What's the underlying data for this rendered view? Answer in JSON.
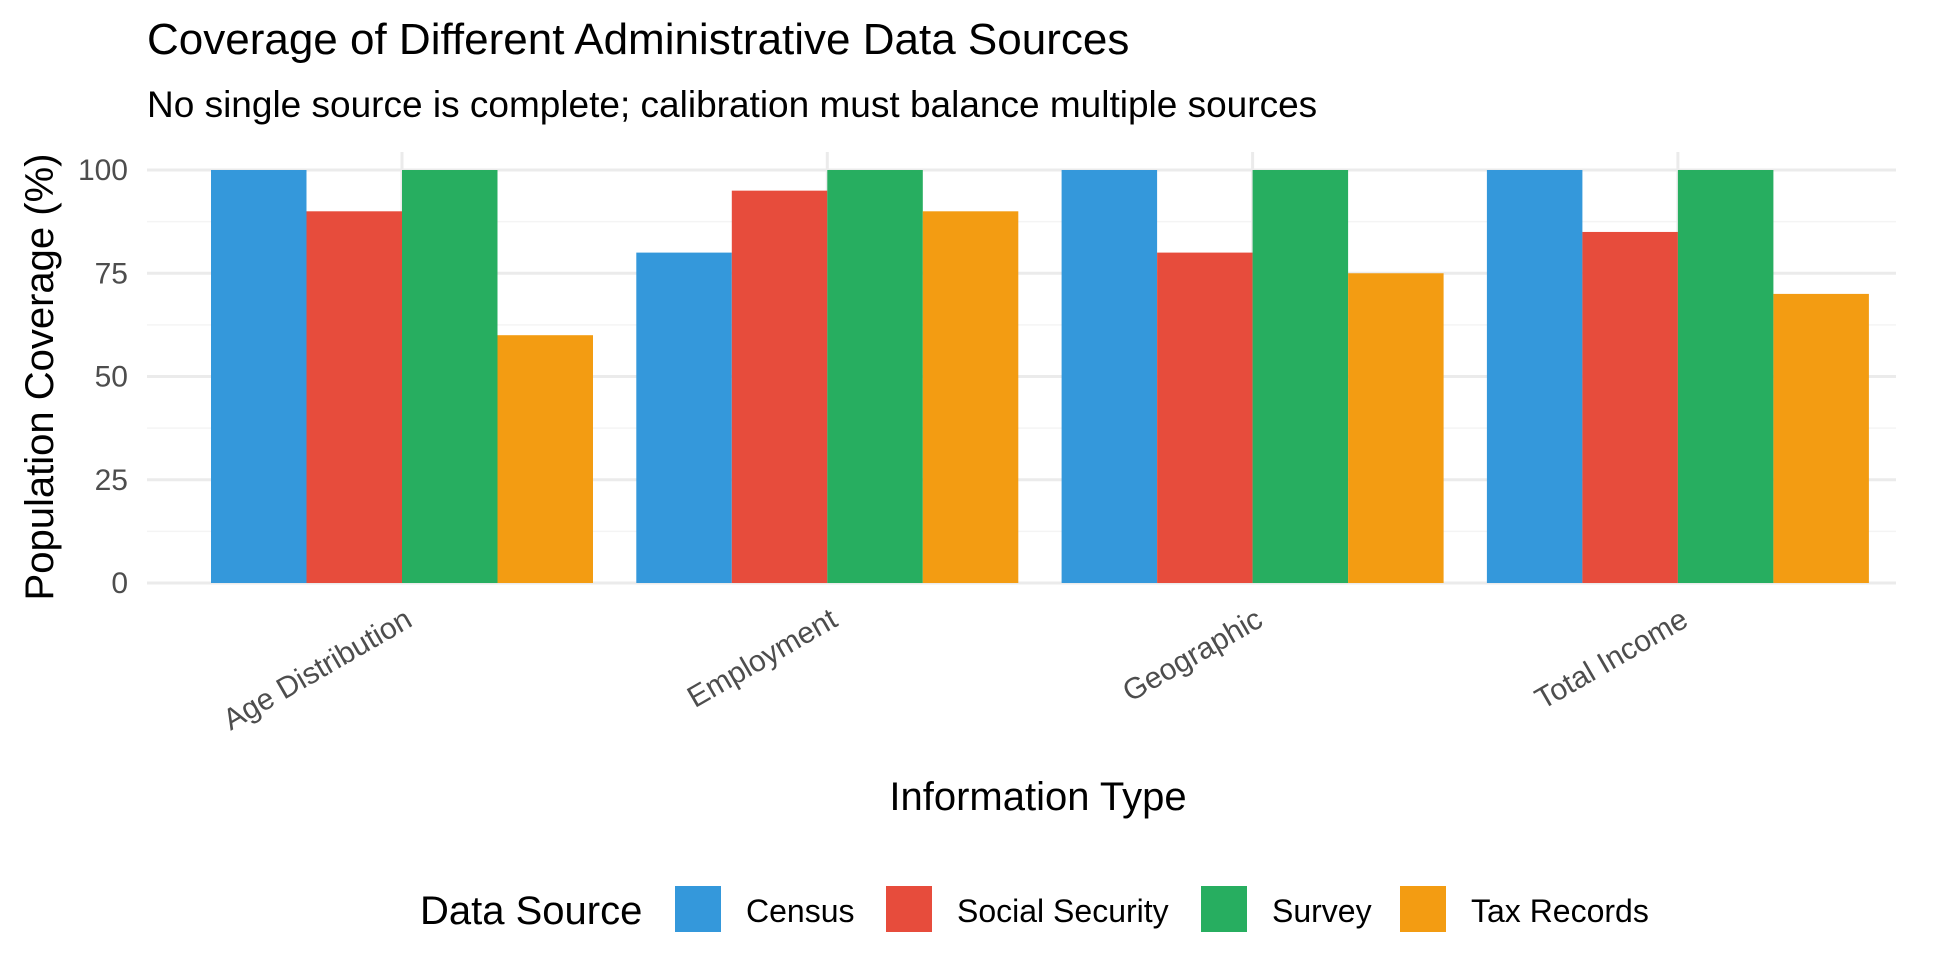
{
  "chart_data": {
    "type": "bar",
    "title": "Coverage of Different Administrative Data Sources",
    "subtitle": "No single source is complete; calibration must balance multiple sources",
    "xlabel": "Information Type",
    "ylabel": "Population Coverage (%)",
    "categories": [
      "Age Distribution",
      "Employment",
      "Geographic",
      "Total Income"
    ],
    "series": [
      {
        "name": "Census",
        "color": "#3498db",
        "values": [
          100,
          80,
          100,
          100
        ]
      },
      {
        "name": "Social Security",
        "color": "#e74c3c",
        "values": [
          90,
          95,
          80,
          85
        ]
      },
      {
        "name": "Survey",
        "color": "#27ae60",
        "values": [
          100,
          100,
          100,
          100
        ]
      },
      {
        "name": "Tax Records",
        "color": "#f39c12",
        "values": [
          60,
          90,
          75,
          70
        ]
      }
    ],
    "ylim": [
      0,
      100
    ],
    "yticks": [
      0,
      25,
      50,
      75,
      100
    ],
    "grid": true,
    "legend": {
      "title": "Data Source",
      "position": "bottom"
    }
  }
}
